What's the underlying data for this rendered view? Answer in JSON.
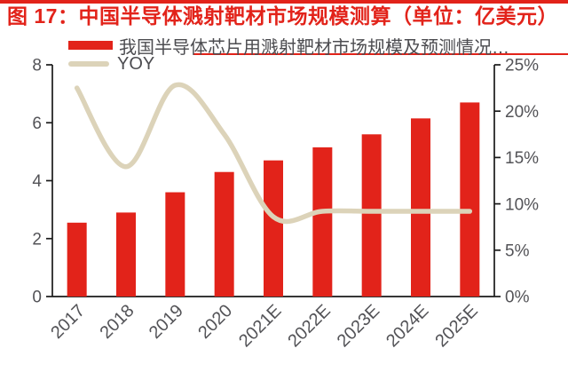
{
  "title": {
    "text": "图 17：中国半导体溅射靶材市场规模测算（单位：亿美元）"
  },
  "legend": {
    "items": [
      {
        "label": "我国半导体芯片用溅射靶材市场规模及预测情况…",
        "swatch": "bar"
      },
      {
        "label": "YOY",
        "swatch": "line"
      }
    ]
  },
  "colors": {
    "accent_red": "#e2231a",
    "line_beige": "#dcd3b9",
    "axis_text": "#535357",
    "axis_line": "#1a1a1a",
    "background": "#ffffff"
  },
  "chart_data": {
    "type": "bar",
    "title": "图 17：中国半导体溅射靶材市场规模测算（单位：亿美元）",
    "categories": [
      "2017",
      "2018",
      "2019",
      "2020",
      "2021E",
      "2022E",
      "2023E",
      "2024E",
      "2025E"
    ],
    "series": [
      {
        "name": "我国半导体芯片用溅射靶材市场规模及预测情况…",
        "type": "bar",
        "axis": "left",
        "values": [
          2.55,
          2.9,
          3.6,
          4.3,
          4.7,
          5.15,
          5.6,
          6.15,
          6.7
        ]
      },
      {
        "name": "YOY",
        "type": "line",
        "axis": "right",
        "unit": "%",
        "values": [
          22.5,
          14.0,
          22.8,
          17.5,
          8.6,
          9.2,
          9.2,
          9.2,
          9.2
        ]
      }
    ],
    "left_axis": {
      "min": 0,
      "max": 8,
      "ticks": [
        "0",
        "2",
        "4",
        "6",
        "8"
      ]
    },
    "right_axis": {
      "min": 0,
      "max": 25,
      "ticks": [
        "0%",
        "5%",
        "10%",
        "15%",
        "20%",
        "25%"
      ]
    },
    "xlabel": "",
    "ylabel": "",
    "grid": false,
    "legend_position": "top-left",
    "x_label_rotation": -45
  }
}
